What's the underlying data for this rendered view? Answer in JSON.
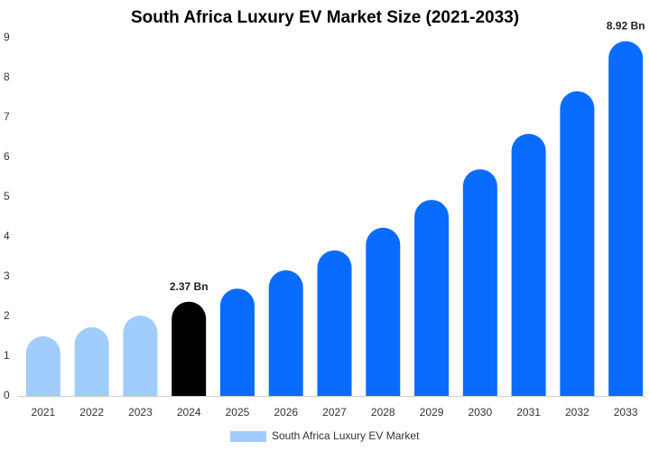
{
  "chart_data": {
    "type": "bar",
    "title": "South Africa Luxury EV Market Size (2021-2033)",
    "categories": [
      "2021",
      "2022",
      "2023",
      "2024",
      "2025",
      "2026",
      "2027",
      "2028",
      "2029",
      "2030",
      "2031",
      "2032",
      "2033"
    ],
    "series": [
      {
        "name": "South Africa Luxury EV Market",
        "color": "#a0cdfc",
        "values": [
          1.5,
          1.73,
          2.02,
          2.37,
          2.7,
          3.16,
          3.66,
          4.23,
          4.93,
          5.7,
          6.59,
          7.66,
          8.92
        ],
        "value_labels": [
          null,
          null,
          null,
          "2.37 Bn",
          null,
          null,
          null,
          null,
          null,
          null,
          null,
          null,
          "8.92 Bn"
        ],
        "colors": [
          "#a0cdfc",
          "#a0cdfc",
          "#a0cdfc",
          "#000000",
          "#0a6cff",
          "#0a6cff",
          "#0a6cff",
          "#0a6cff",
          "#0a6cff",
          "#0a6cff",
          "#0a6cff",
          "#0a6cff",
          "#0a6cff"
        ]
      }
    ],
    "ylim": [
      0,
      9
    ],
    "yticks": [
      0,
      1,
      2,
      3,
      4,
      5,
      6,
      7,
      8,
      9
    ],
    "grid": false,
    "legend": "bottom"
  }
}
